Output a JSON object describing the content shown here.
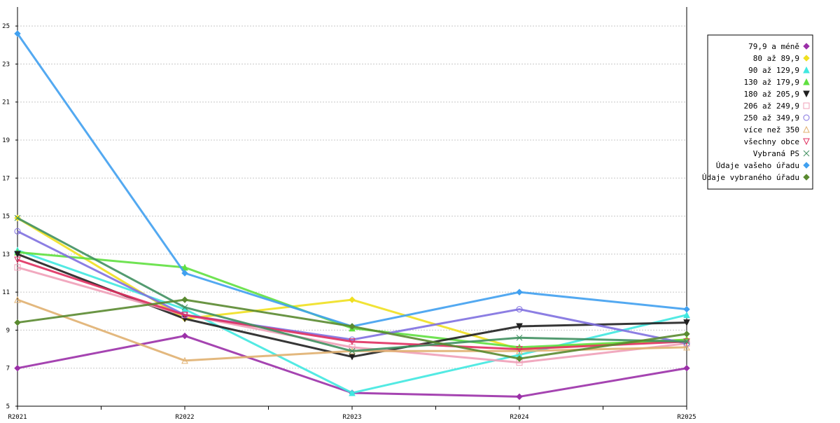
{
  "chart_data": {
    "type": "line",
    "categories": [
      "R2021",
      "R2022",
      "R2023",
      "R2024",
      "R2025"
    ],
    "ylim": [
      5,
      26
    ],
    "yticks": [
      5,
      7,
      9,
      11,
      13,
      15,
      17,
      19,
      21,
      23,
      25
    ],
    "grid": "horizontal dashed",
    "legend_position": "top-right",
    "series": [
      {
        "name": "79,9 a méně",
        "color": "#9b30a8",
        "marker": "diamond",
        "values": [
          7.0,
          8.7,
          5.7,
          5.5,
          7.0
        ]
      },
      {
        "name": "80 až 89,9",
        "color": "#f0e020",
        "marker": "diamond",
        "values": [
          14.9,
          9.6,
          10.6,
          8.0,
          8.5
        ]
      },
      {
        "name": "90 až 129,9",
        "color": "#40e8e0",
        "marker": "triangle-up",
        "values": [
          13.2,
          10.1,
          5.7,
          7.7,
          9.8
        ]
      },
      {
        "name": "130 až 179,9",
        "color": "#60e040",
        "marker": "triangle-up",
        "values": [
          13.1,
          12.3,
          9.1,
          8.1,
          8.5
        ]
      },
      {
        "name": "180 až 205,9",
        "color": "#202020",
        "marker": "triangle-down",
        "values": [
          13.0,
          9.6,
          7.6,
          9.2,
          9.4
        ]
      },
      {
        "name": "206 až 249,9",
        "color": "#f0a0b8",
        "marker": "square-open",
        "values": [
          12.3,
          9.8,
          8.1,
          7.3,
          8.3
        ]
      },
      {
        "name": "250 až 349,9",
        "color": "#8070e0",
        "marker": "circle-open",
        "values": [
          14.2,
          9.8,
          8.5,
          10.1,
          8.3
        ]
      },
      {
        "name": "více než 350",
        "color": "#e0b070",
        "marker": "triangle-open",
        "values": [
          10.6,
          7.4,
          7.9,
          7.9,
          8.1
        ]
      },
      {
        "name": "všechny obce",
        "color": "#e03060",
        "marker": "triangle-down-open",
        "values": [
          12.7,
          9.8,
          8.4,
          8.0,
          8.4
        ]
      },
      {
        "name": "Vybraná PS",
        "color": "#409060",
        "marker": "x",
        "values": [
          14.9,
          10.2,
          7.9,
          8.6,
          8.4
        ]
      },
      {
        "name": "Údaje vašeho úřadu",
        "color": "#40a0f0",
        "marker": "diamond",
        "values": [
          24.6,
          12.0,
          9.2,
          11.0,
          10.1
        ]
      },
      {
        "name": "Údaje vybraného úřadu",
        "color": "#5a8a30",
        "marker": "diamond",
        "values": [
          9.4,
          10.6,
          9.2,
          7.5,
          8.8
        ]
      }
    ]
  }
}
